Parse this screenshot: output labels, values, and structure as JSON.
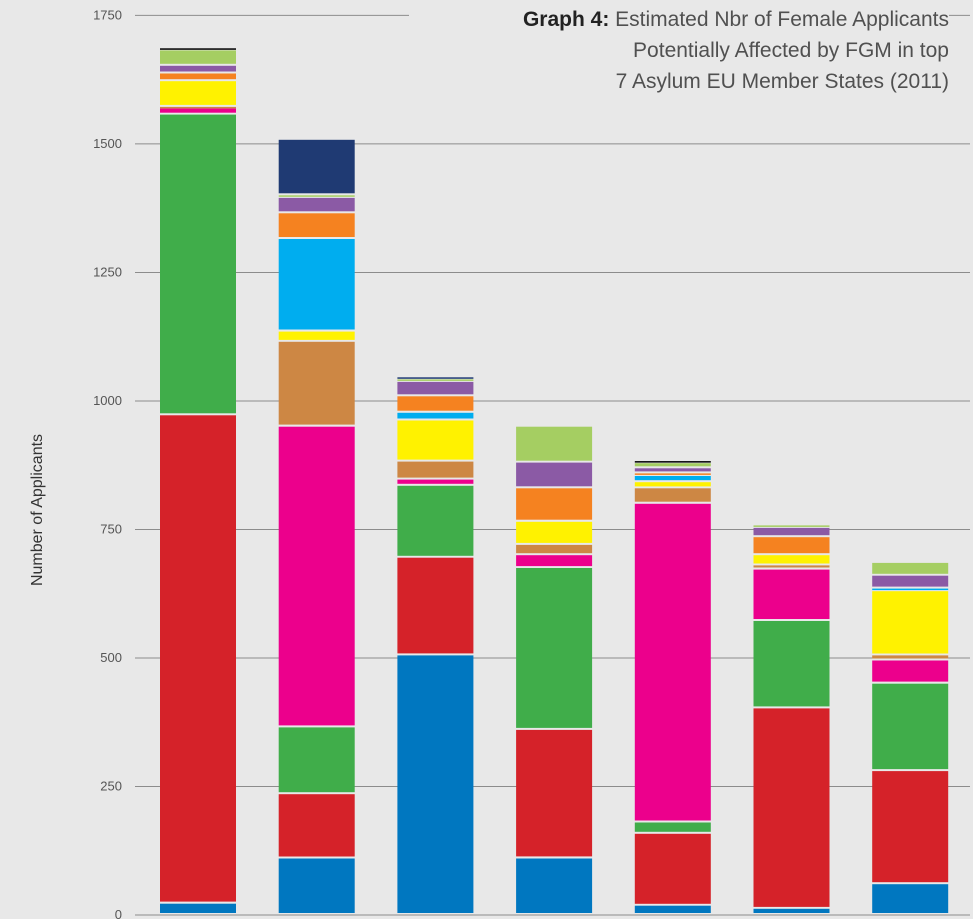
{
  "chart_data": {
    "type": "bar",
    "stacked": true,
    "title_prefix": "Graph 4:",
    "title_lines": [
      "Estimated Nbr of Female Applicants",
      "Potentially Affected by FGM in top",
      "7 Asylum EU Member States (2011)"
    ],
    "xlabel": "",
    "ylabel": "Number of Applicants",
    "ylim": [
      0,
      1780
    ],
    "yticks": [
      0,
      250,
      500,
      750,
      1000,
      1250,
      1500,
      1750
    ],
    "yticks_labels": [
      "0",
      "250",
      "500",
      "750",
      "1000",
      "1250",
      "1500",
      "1750"
    ],
    "grid": true,
    "categories": [
      "",
      "",
      "",
      "",
      "",
      "",
      ""
    ],
    "series": [
      {
        "color": "#0077c0",
        "values": [
          22,
          110,
          505,
          110,
          18,
          12,
          60
        ]
      },
      {
        "color": "#d52229",
        "values": [
          950,
          125,
          190,
          250,
          140,
          390,
          220
        ]
      },
      {
        "color": "#40ad4a",
        "values": [
          585,
          130,
          140,
          315,
          22,
          170,
          170
        ]
      },
      {
        "color": "#ec008c",
        "values": [
          12,
          585,
          12,
          25,
          620,
          100,
          45
        ]
      },
      {
        "color": "#cd8744",
        "values": [
          3,
          165,
          35,
          20,
          30,
          8,
          10
        ]
      },
      {
        "color": "#fff200",
        "values": [
          50,
          20,
          80,
          45,
          12,
          20,
          125
        ]
      },
      {
        "color": "#00adef",
        "values": [
          0,
          180,
          15,
          0,
          12,
          0,
          5
        ]
      },
      {
        "color": "#f58220",
        "values": [
          15,
          50,
          32,
          65,
          5,
          35,
          0
        ]
      },
      {
        "color": "#8b5aa5",
        "values": [
          15,
          30,
          28,
          50,
          10,
          18,
          25
        ]
      },
      {
        "color": "#a5ce62",
        "values": [
          30,
          5,
          5,
          70,
          10,
          5,
          25
        ]
      },
      {
        "color": "#000000",
        "values": [
          4,
          0,
          0,
          0,
          4,
          0,
          0
        ]
      },
      {
        "color": "#1f3a73",
        "values": [
          0,
          108,
          4,
          0,
          0,
          0,
          0
        ]
      }
    ]
  }
}
